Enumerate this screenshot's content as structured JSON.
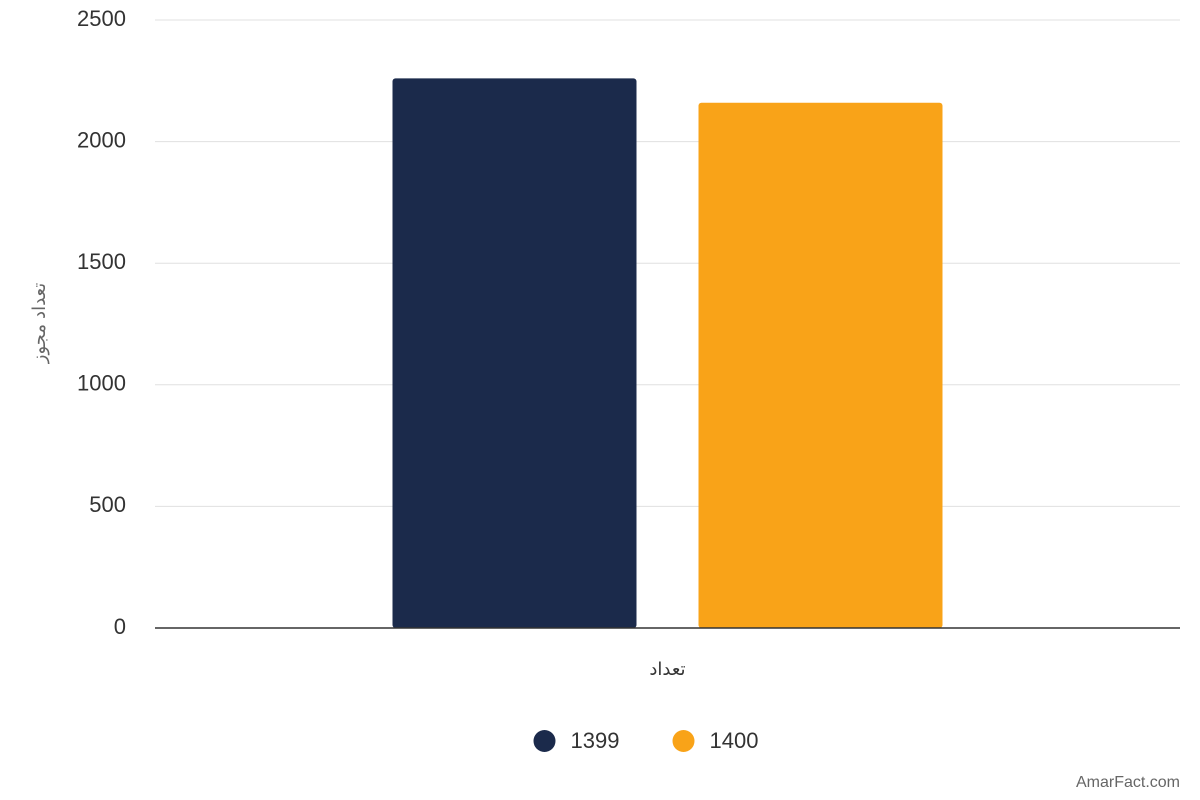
{
  "chart_data": {
    "type": "bar",
    "categories": [
      "تعداد"
    ],
    "series": [
      {
        "name": "1399",
        "color": "#1b2a4b",
        "values": [
          2260
        ]
      },
      {
        "name": "1400",
        "color": "#f9a318",
        "values": [
          2160
        ]
      }
    ],
    "y_label": "تعداد مجوز",
    "ylim": [
      0,
      2500
    ],
    "yticks": [
      0,
      500,
      1000,
      1500,
      2000,
      2500
    ],
    "grid": true,
    "legend": "bottom",
    "credit": "AmarFact.com"
  }
}
